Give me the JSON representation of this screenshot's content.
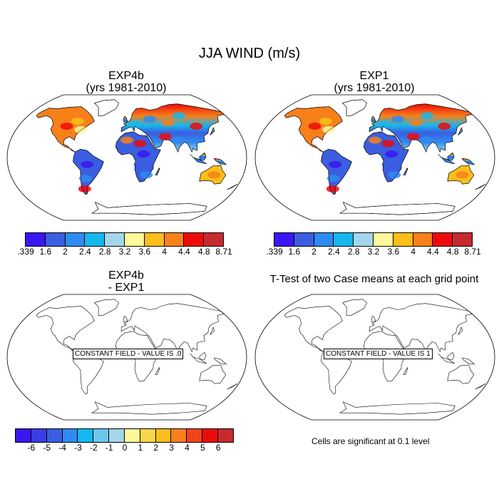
{
  "figure": {
    "title": "JJA WIND (m/s)"
  },
  "panels": [
    {
      "title_line1": "EXP4b",
      "title_line2": "(yrs 1981-2010)",
      "field": "wind",
      "constant_label": ""
    },
    {
      "title_line1": "EXP1",
      "title_line2": "(yrs 1981-2010)",
      "field": "wind",
      "constant_label": ""
    },
    {
      "title_line1": "EXP4b",
      "title_line2": "- EXP1",
      "field": "constant",
      "constant_label": "CONSTANT FIELD - VALUE IS .0"
    },
    {
      "title_line1": "T-Test of two Case means at each grid point",
      "title_line2": "",
      "field": "constant",
      "constant_label": "CONSTANT FIELD - VALUE IS 1"
    }
  ],
  "colorbars": {
    "wind": {
      "labels": [
        ".339",
        "1.6",
        "2",
        "2.4",
        "2.8",
        "3.2",
        "3.6",
        "4",
        "4.4",
        "4.8",
        "8.71"
      ],
      "colors": [
        "#3a17f0",
        "#3b5ee0",
        "#2f8bef",
        "#16b7ef",
        "#a3d6ea",
        "#fff89a",
        "#fbbe1a",
        "#f7801a",
        "#ee0a0a",
        "#c62a2e"
      ]
    },
    "diff": {
      "labels": [
        "-6",
        "-5",
        "-4",
        "-3",
        "-2",
        "-1",
        "0",
        "1",
        "2",
        "3",
        "4",
        "5",
        "6"
      ],
      "colors": [
        "#3a17f0",
        "#3a3ce6",
        "#3b5ee0",
        "#2f8bef",
        "#16b7ef",
        "#6cc6ec",
        "#a3d6ea",
        "#fff89a",
        "#fbd64a",
        "#fbbe1a",
        "#f7801a",
        "#f2431a",
        "#ee0a0a",
        "#c62a2e"
      ]
    }
  },
  "significance_note": "Cells are significant at 0.1 level"
}
